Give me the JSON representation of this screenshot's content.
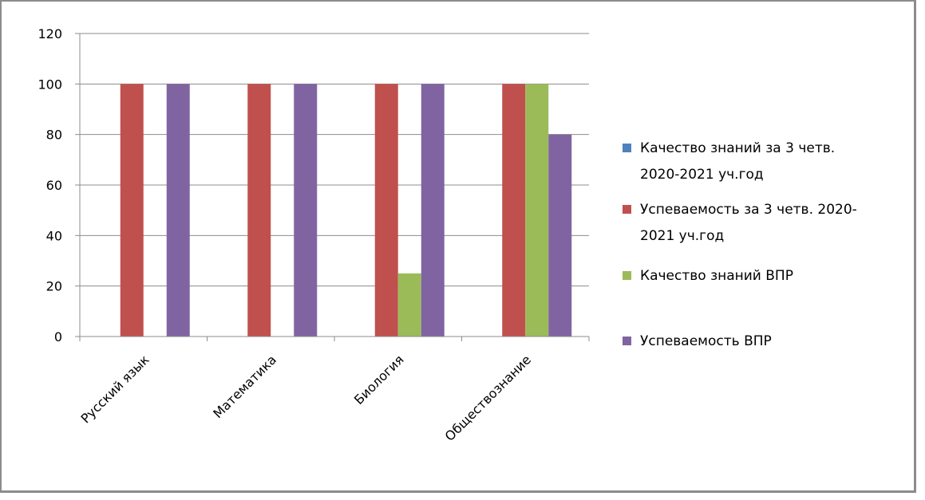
{
  "chart_data": {
    "type": "bar",
    "categories": [
      "Русский язык",
      "Математика",
      "Биология",
      "Обществознание"
    ],
    "series": [
      {
        "name": "Качество знаний за 3 четв. 2020-2021 уч.год",
        "values": [
          0,
          0,
          0,
          0
        ],
        "color": "#4f81bd",
        "legend_lines": [
          "Качество знаний за 3 четв.",
          "2020-2021 уч.год"
        ]
      },
      {
        "name": "Успеваемость  за 3 четв. 2020-2021 уч.год",
        "values": [
          100,
          100,
          100,
          100
        ],
        "color": "#c0504d",
        "legend_lines": [
          "Успеваемость  за 3 четв. 2020-",
          "2021 уч.год"
        ]
      },
      {
        "name": "Качество знаний ВПР",
        "values": [
          0,
          0,
          25,
          100
        ],
        "color": "#9bbb59",
        "legend_lines": [
          "Качество знаний ВПР"
        ]
      },
      {
        "name": "Успеваемость ВПР",
        "values": [
          100,
          100,
          100,
          80
        ],
        "color": "#8064a2",
        "legend_lines": [
          "Успеваемость ВПР"
        ]
      }
    ],
    "ylim": [
      0,
      120
    ],
    "yticks": [
      0,
      20,
      40,
      60,
      80,
      100,
      120
    ],
    "grid": true,
    "legend_position": "right"
  }
}
